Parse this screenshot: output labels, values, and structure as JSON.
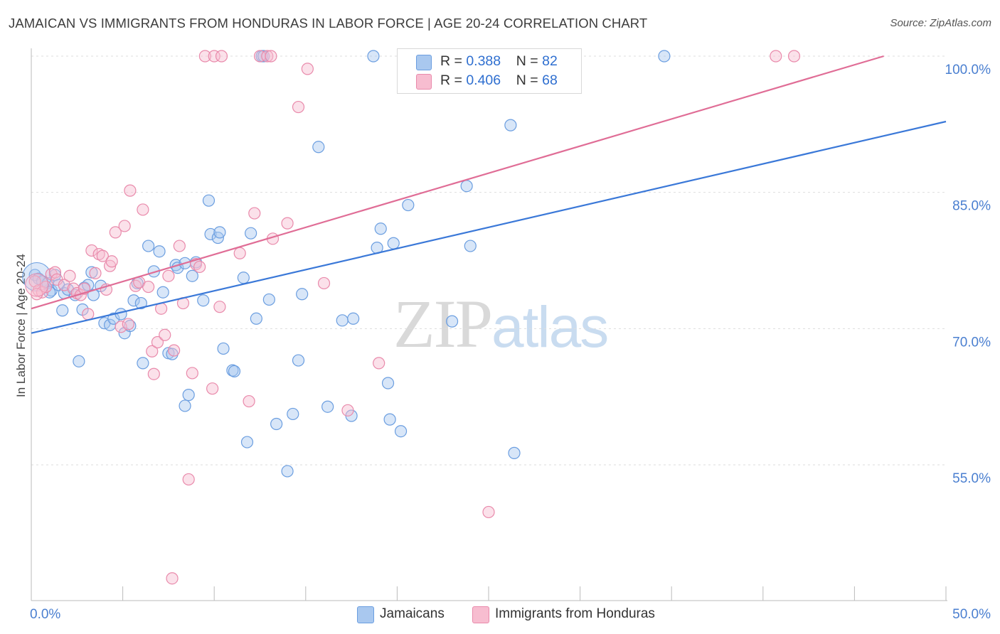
{
  "header": {
    "title": "JAMAICAN VS IMMIGRANTS FROM HONDURAS IN LABOR FORCE | AGE 20-24 CORRELATION CHART",
    "source": "Source: ZipAtlas.com"
  },
  "watermark": {
    "zip": "ZIP",
    "atlas": "atlas"
  },
  "legend": {
    "r_label": "R =",
    "n_label": "N =",
    "rows": [
      {
        "r": "0.388",
        "n": "82"
      },
      {
        "r": "0.406",
        "n": "68"
      }
    ]
  },
  "colors": {
    "jamaicans_fill": "#a9c8ef",
    "jamaicans_stroke": "#6b9ee0",
    "jamaicans_line": "#3a78d8",
    "honduras_fill": "#f7bdd0",
    "honduras_stroke": "#e98aab",
    "honduras_line": "#e06d96",
    "axis_label": "#4a7fd0",
    "grid": "#dddddd"
  },
  "chart_data": {
    "type": "scatter",
    "title": "JAMAICAN VS IMMIGRANTS FROM HONDURAS IN LABOR FORCE | AGE 20-24 CORRELATION CHART",
    "xlabel": "",
    "ylabel": "In Labor Force | Age 20-24",
    "xlim": [
      0,
      50
    ],
    "ylim": [
      40,
      101.5
    ],
    "x_tick_labels": [
      "0.0%",
      "50.0%"
    ],
    "y_ticks": [
      55,
      70,
      85,
      100
    ],
    "y_tick_labels": [
      "55.0%",
      "70.0%",
      "85.0%",
      "100.0%"
    ],
    "grid": true,
    "legend_position": "bottom",
    "series": [
      {
        "name": "Jamaicans",
        "trend": [
          [
            0,
            69.5
          ],
          [
            50,
            92.8
          ]
        ],
        "points": [
          [
            0.2,
            75.9
          ],
          [
            0.4,
            75.5
          ],
          [
            0.6,
            75.2
          ],
          [
            0.9,
            75.0
          ],
          [
            1.1,
            74.2
          ],
          [
            1.3,
            75.9
          ],
          [
            1.5,
            74.8
          ],
          [
            1.8,
            73.9
          ],
          [
            2.0,
            74.3
          ],
          [
            1.7,
            72.0
          ],
          [
            2.9,
            74.5
          ],
          [
            3.1,
            74.8
          ],
          [
            3.3,
            76.2
          ],
          [
            2.8,
            72.1
          ],
          [
            3.8,
            74.7
          ],
          [
            4.0,
            70.6
          ],
          [
            4.3,
            70.4
          ],
          [
            4.5,
            71.1
          ],
          [
            4.9,
            71.6
          ],
          [
            5.1,
            69.5
          ],
          [
            5.6,
            73.1
          ],
          [
            5.8,
            75.0
          ],
          [
            6.0,
            72.8
          ],
          [
            6.4,
            79.1
          ],
          [
            6.7,
            76.3
          ],
          [
            7.0,
            78.5
          ],
          [
            7.2,
            74.0
          ],
          [
            7.5,
            67.3
          ],
          [
            7.7,
            67.2
          ],
          [
            7.9,
            77.0
          ],
          [
            8.0,
            76.7
          ],
          [
            8.4,
            77.2
          ],
          [
            8.8,
            75.8
          ],
          [
            9.0,
            77.3
          ],
          [
            9.4,
            73.1
          ],
          [
            9.7,
            84.1
          ],
          [
            9.8,
            80.4
          ],
          [
            10.2,
            80.0
          ],
          [
            10.3,
            80.6
          ],
          [
            10.5,
            67.8
          ],
          [
            11.0,
            65.4
          ],
          [
            11.1,
            65.3
          ],
          [
            11.6,
            75.6
          ],
          [
            11.8,
            57.5
          ],
          [
            12.0,
            80.5
          ],
          [
            12.3,
            71.1
          ],
          [
            12.6,
            100.0
          ],
          [
            12.7,
            100.0
          ],
          [
            13.0,
            73.2
          ],
          [
            13.4,
            59.5
          ],
          [
            14.0,
            54.3
          ],
          [
            14.3,
            60.6
          ],
          [
            14.6,
            66.5
          ],
          [
            14.8,
            73.8
          ],
          [
            15.7,
            90.0
          ],
          [
            16.2,
            61.4
          ],
          [
            17.0,
            70.9
          ],
          [
            17.5,
            60.4
          ],
          [
            17.6,
            71.1
          ],
          [
            18.7,
            100.0
          ],
          [
            18.9,
            78.9
          ],
          [
            19.1,
            81.0
          ],
          [
            19.5,
            64.0
          ],
          [
            19.6,
            60.0
          ],
          [
            19.8,
            79.4
          ],
          [
            20.2,
            58.7
          ],
          [
            20.6,
            83.6
          ],
          [
            23.0,
            70.8
          ],
          [
            23.8,
            85.7
          ],
          [
            24.0,
            79.1
          ],
          [
            26.2,
            92.4
          ],
          [
            26.4,
            56.3
          ],
          [
            29.6,
            100.0
          ],
          [
            34.6,
            100.0
          ],
          [
            6.1,
            66.2
          ],
          [
            2.6,
            66.4
          ],
          [
            8.4,
            61.5
          ],
          [
            8.6,
            62.7
          ],
          [
            5.4,
            70.3
          ],
          [
            3.4,
            73.7
          ],
          [
            2.4,
            73.7
          ],
          [
            1.0,
            74.0
          ]
        ]
      },
      {
        "name": "Immigrants from Honduras",
        "trend": [
          [
            0,
            72.2
          ],
          [
            46.6,
            100.0
          ]
        ],
        "points": [
          [
            0.2,
            75.2
          ],
          [
            0.4,
            74.2
          ],
          [
            0.6,
            74.0
          ],
          [
            0.8,
            74.6
          ],
          [
            1.1,
            76.0
          ],
          [
            1.3,
            76.2
          ],
          [
            1.4,
            75.4
          ],
          [
            1.8,
            74.8
          ],
          [
            2.1,
            75.8
          ],
          [
            2.3,
            74.4
          ],
          [
            2.5,
            73.9
          ],
          [
            2.7,
            73.7
          ],
          [
            2.9,
            74.4
          ],
          [
            3.1,
            71.6
          ],
          [
            3.3,
            78.6
          ],
          [
            3.5,
            76.1
          ],
          [
            3.7,
            78.2
          ],
          [
            3.9,
            78.0
          ],
          [
            4.1,
            74.3
          ],
          [
            4.3,
            76.9
          ],
          [
            4.4,
            77.4
          ],
          [
            4.6,
            80.6
          ],
          [
            4.9,
            70.2
          ],
          [
            5.1,
            81.3
          ],
          [
            5.3,
            70.5
          ],
          [
            5.4,
            85.2
          ],
          [
            5.7,
            74.7
          ],
          [
            5.9,
            75.1
          ],
          [
            6.1,
            83.1
          ],
          [
            6.4,
            74.6
          ],
          [
            6.6,
            67.5
          ],
          [
            6.7,
            65.0
          ],
          [
            6.9,
            68.5
          ],
          [
            7.1,
            72.2
          ],
          [
            7.3,
            69.3
          ],
          [
            7.5,
            75.8
          ],
          [
            7.8,
            67.6
          ],
          [
            8.1,
            79.1
          ],
          [
            8.3,
            72.8
          ],
          [
            8.6,
            53.4
          ],
          [
            8.8,
            65.1
          ],
          [
            9.0,
            77.1
          ],
          [
            9.2,
            76.8
          ],
          [
            9.5,
            100.0
          ],
          [
            9.9,
            63.4
          ],
          [
            10.0,
            100.0
          ],
          [
            10.4,
            100.0
          ],
          [
            10.3,
            72.4
          ],
          [
            11.4,
            78.3
          ],
          [
            11.9,
            62.0
          ],
          [
            12.2,
            82.7
          ],
          [
            12.5,
            100.0
          ],
          [
            12.9,
            100.0
          ],
          [
            13.1,
            100.0
          ],
          [
            13.2,
            79.9
          ],
          [
            14.0,
            81.6
          ],
          [
            14.6,
            94.4
          ],
          [
            15.1,
            98.6
          ],
          [
            16.0,
            75.0
          ],
          [
            17.3,
            61.0
          ],
          [
            19.0,
            66.2
          ],
          [
            23.3,
            100.0
          ],
          [
            25.0,
            49.8
          ],
          [
            27.5,
            100.0
          ],
          [
            7.7,
            42.5
          ],
          [
            40.7,
            100.0
          ],
          [
            41.7,
            100.0
          ],
          [
            0.3,
            73.8
          ]
        ]
      }
    ]
  }
}
